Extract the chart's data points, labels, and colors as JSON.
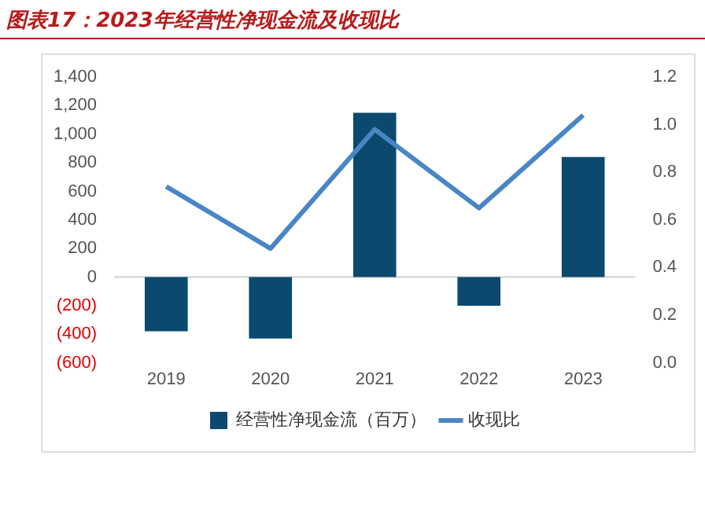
{
  "chart_data": {
    "type": "bar",
    "title": "图表17：2023年经营性净现金流及收现比",
    "categories": [
      "2019",
      "2020",
      "2021",
      "2022",
      "2023"
    ],
    "series": [
      {
        "name": "经营性净现金流（百万）",
        "color": "#0b4a6e",
        "values": [
          -380,
          -430,
          1150,
          -200,
          840
        ]
      },
      {
        "name": "收现比",
        "type": "line",
        "axis": "y2",
        "color": "#4a86c5",
        "values": [
          0.74,
          0.48,
          0.98,
          0.65,
          1.04
        ]
      }
    ],
    "ylim": [
      -600,
      1400
    ],
    "yticks": [
      {
        "value": -600,
        "label": "(600)"
      },
      {
        "value": -400,
        "label": "(400)"
      },
      {
        "value": -200,
        "label": "(200)"
      },
      0,
      {
        "value": 200,
        "label": "200"
      },
      {
        "value": 400,
        "label": "400"
      },
      {
        "value": 600,
        "label": "600"
      },
      {
        "value": 800,
        "label": "800"
      },
      {
        "value": 1000,
        "label": "1,000"
      },
      {
        "value": 1200,
        "label": "1,200"
      },
      {
        "value": 1400,
        "label": "1,400"
      }
    ],
    "y2lim": [
      0,
      1.2
    ],
    "y2ticks": [
      {
        "value": 0,
        "label": "0.0"
      },
      0.2,
      0.4,
      0.6,
      0.8,
      {
        "value": 1,
        "label": "1.0"
      },
      1.2
    ],
    "ref_lines": [
      {
        "axis": "y",
        "value": 0,
        "color": "#d0d0d0"
      }
    ],
    "grid": false,
    "legend": "bottom",
    "marker": "none",
    "line_style": "solid"
  }
}
